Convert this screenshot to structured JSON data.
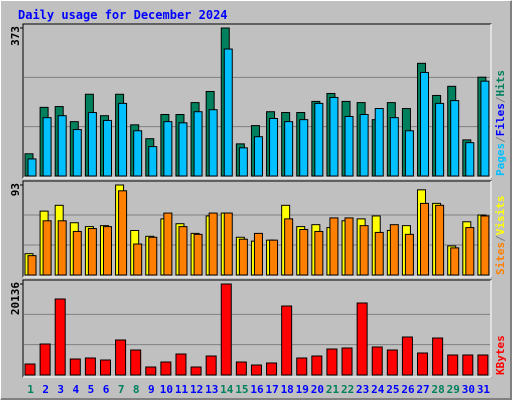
{
  "chart_data": [
    {
      "type": "bar",
      "title": "Daily usage for December 2024",
      "ylim": [
        0,
        373
      ],
      "yticks": [
        373
      ],
      "legend_separator": "/",
      "series": [
        {
          "name": "Hits",
          "color": "#00805c",
          "values": [
            56,
            173,
            175,
            137,
            206,
            152,
            206,
            129,
            94,
            155,
            155,
            185,
            213,
            373,
            81,
            127,
            162,
            160,
            160,
            188,
            208,
            188,
            185,
            142,
            185,
            170,
            284,
            203,
            226,
            91,
            249
          ]
        },
        {
          "name": "Files",
          "color": "#0000ff",
          "values": [
            null,
            null,
            null,
            null,
            null,
            null,
            null,
            null,
            null,
            null,
            null,
            null,
            null,
            null,
            null,
            null,
            null,
            null,
            null,
            null,
            null,
            null,
            null,
            null,
            null,
            null,
            null,
            null,
            null,
            null,
            null
          ]
        },
        {
          "name": "Pages",
          "color": "#00c0ff",
          "values": [
            43,
            147,
            152,
            117,
            160,
            140,
            183,
            114,
            74,
            137,
            134,
            162,
            167,
            320,
            71,
            99,
            145,
            137,
            142,
            183,
            198,
            150,
            155,
            170,
            147,
            114,
            261,
            183,
            190,
            84,
            239
          ]
        }
      ]
    },
    {
      "type": "bar",
      "ylim": [
        0,
        93
      ],
      "yticks": [
        93
      ],
      "legend_separator": "/",
      "series": [
        {
          "name": "Visits",
          "color": "#ffff00",
          "values": [
            22,
            66,
            72,
            54,
            50,
            51,
            93,
            46,
            40,
            58,
            53,
            43,
            61,
            64,
            39,
            35,
            36,
            72,
            50,
            52,
            49,
            56,
            58,
            61,
            46,
            51,
            88,
            74,
            30,
            55,
            62
          ]
        },
        {
          "name": "Sites",
          "color": "#ff8000",
          "values": [
            20,
            56,
            56,
            45,
            48,
            50,
            87,
            32,
            39,
            64,
            50,
            42,
            64,
            64,
            37,
            43,
            36,
            58,
            47,
            45,
            59,
            59,
            51,
            44,
            52,
            42,
            74,
            72,
            28,
            49,
            61
          ]
        }
      ]
    },
    {
      "type": "bar",
      "ylim": [
        0,
        20136
      ],
      "yticks": [
        20136
      ],
      "categories": [
        "1",
        "2",
        "3",
        "4",
        "5",
        "6",
        "7",
        "8",
        "9",
        "10",
        "11",
        "12",
        "13",
        "14",
        "15",
        "16",
        "17",
        "18",
        "19",
        "20",
        "21",
        "22",
        "23",
        "24",
        "25",
        "26",
        "27",
        "28",
        "29",
        "30",
        "31"
      ],
      "weekend_categories": [
        0,
        6,
        7,
        13,
        14,
        20,
        21,
        27,
        28
      ],
      "weekend_color": "#00805c",
      "weekday_color": "#0000ff",
      "series": [
        {
          "name": "KBytes",
          "color": "#ff0000",
          "values": [
            2434,
            6860,
            16817,
            3540,
            3762,
            3319,
            7745,
            5532,
            1770,
            2877,
            4647,
            1770,
            4204,
            20136,
            2877,
            2213,
            2655,
            15268,
            3762,
            4204,
            5753,
            5974,
            15932,
            6196,
            5532,
            8408,
            4868,
            8187,
            4425,
            4425,
            4425
          ]
        }
      ]
    }
  ]
}
